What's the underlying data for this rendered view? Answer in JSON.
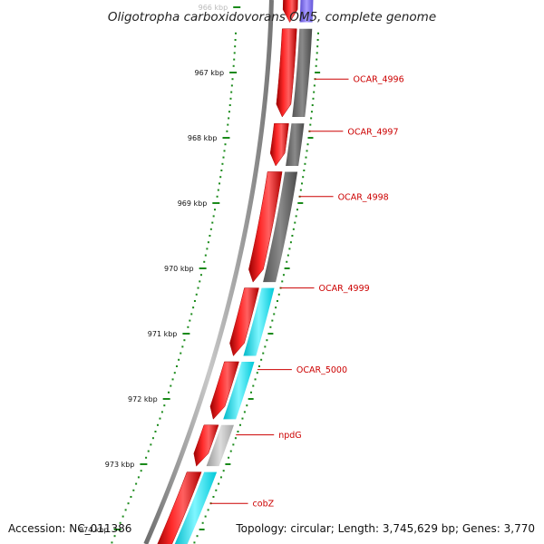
{
  "title": "Oligotropha carboxidovorans OM5, complete genome",
  "footer": {
    "accession": "Accession: NC_011386",
    "stats": "Topology: circular; Length: 3,745,629 bp; Genes: 3,770"
  },
  "scale": {
    "unit": "kbp",
    "major_ticks": [
      966,
      967,
      968,
      969,
      970,
      971,
      972,
      973,
      974
    ],
    "tick_labels": [
      "966 kbp",
      "967 kbp",
      "968 kbp",
      "969 kbp",
      "970 kbp",
      "971 kbp",
      "972 kbp",
      "973 kbp",
      "974 kbp"
    ],
    "tick_color": "#1a8a1a"
  },
  "tracks": {
    "forward_color": "#ee0000",
    "backbone_color": "#888888"
  },
  "forward_features": [
    {
      "start": 965.8,
      "end": 966.23,
      "arrow": true
    },
    {
      "start": 966.33,
      "end": 967.68,
      "arrow": true
    },
    {
      "start": 967.78,
      "end": 968.43,
      "arrow": true
    },
    {
      "start": 968.52,
      "end": 970.21,
      "arrow": true
    },
    {
      "start": 970.3,
      "end": 971.34,
      "arrow": true
    },
    {
      "start": 971.43,
      "end": 972.31,
      "arrow": true
    },
    {
      "start": 972.4,
      "end": 973.03,
      "arrow": true
    },
    {
      "start": 973.12,
      "end": 974.4,
      "arrow": false
    }
  ],
  "genes": [
    {
      "label": "OCAR_4996",
      "start": 966.33,
      "end": 967.68,
      "color": "#777777",
      "label_kbp": 967.1
    },
    {
      "label": "OCAR_4997",
      "start": 967.78,
      "end": 968.43,
      "color": "#777777",
      "label_kbp": 967.9
    },
    {
      "label": "OCAR_4998",
      "start": 968.52,
      "end": 970.21,
      "color": "#666666",
      "label_kbp": 968.9
    },
    {
      "label": "OCAR_4999",
      "start": 970.3,
      "end": 971.34,
      "color": "#00e5ee",
      "label_kbp": 970.3
    },
    {
      "label": "OCAR_5000",
      "start": 971.43,
      "end": 972.31,
      "color": "#00e5ee",
      "label_kbp": 971.55
    },
    {
      "label": "npdG",
      "start": 972.4,
      "end": 973.03,
      "color": "#bbbbbb",
      "label_kbp": 972.55
    },
    {
      "label": "cobZ",
      "start": 973.12,
      "end": 974.4,
      "color": "#00e5ee",
      "label_kbp": 973.6
    }
  ],
  "extra_features": [
    {
      "start": 965.8,
      "end": 966.23,
      "color": "#7b68ee"
    }
  ]
}
